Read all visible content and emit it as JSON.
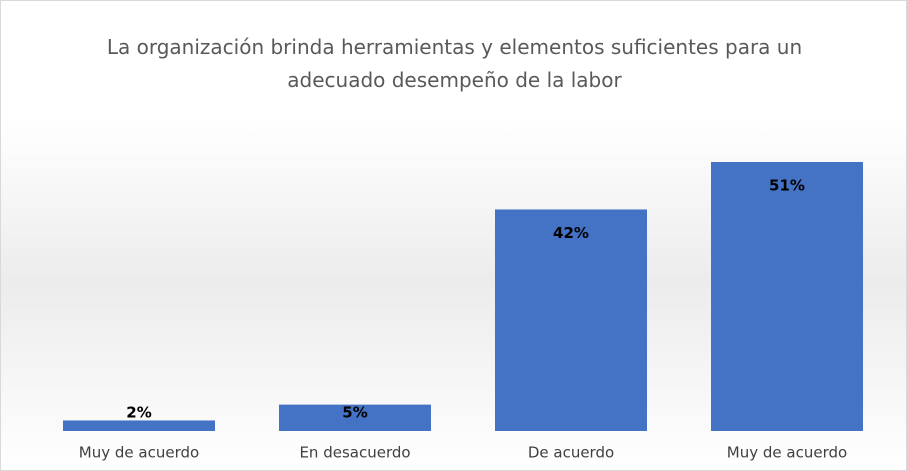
{
  "chart_data": {
    "type": "bar",
    "title": "La organización brinda herramientas y elementos suficientes para un adecuado desempeño de la labor",
    "categories": [
      "Muy de acuerdo",
      "En desacuerdo",
      "De acuerdo",
      "Muy de acuerdo"
    ],
    "values": [
      2,
      5,
      42,
      51
    ],
    "value_labels": [
      "2%",
      "5%",
      "42%",
      "51%"
    ],
    "color": "#4472c4"
  }
}
